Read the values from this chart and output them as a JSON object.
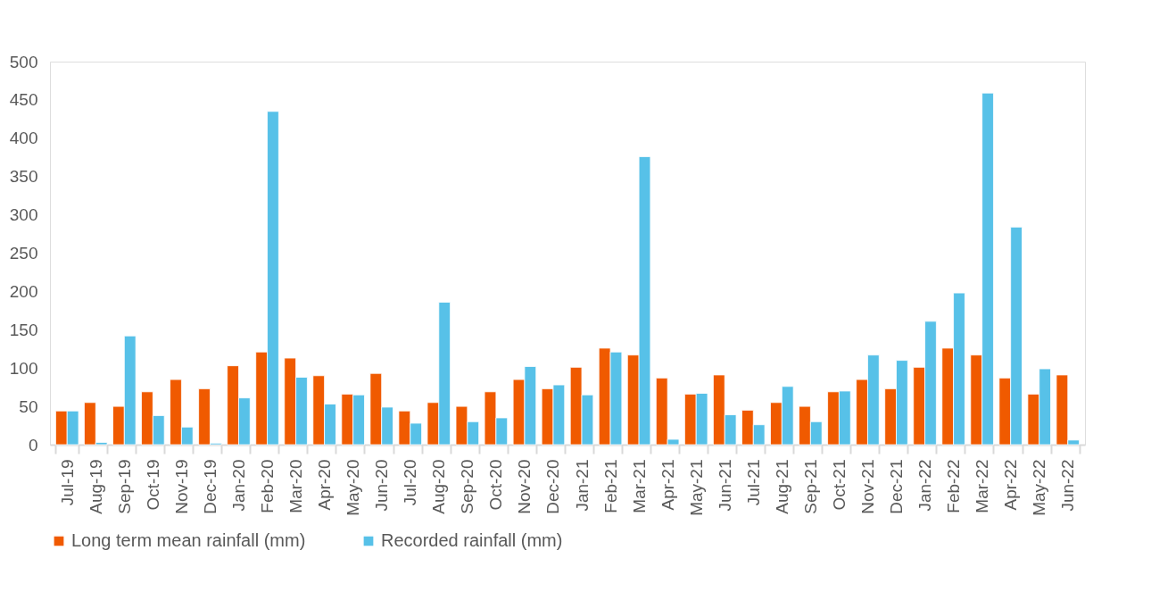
{
  "chart_data": {
    "type": "bar",
    "categories": [
      "Jul-19",
      "Aug-19",
      "Sep-19",
      "Oct-19",
      "Nov-19",
      "Dec-19",
      "Jan-20",
      "Feb-20",
      "Mar-20",
      "Apr-20",
      "May-20",
      "Jun-20",
      "Jul-20",
      "Aug-20",
      "Sep-20",
      "Oct-20",
      "Nov-20",
      "Dec-20",
      "Jan-21",
      "Feb-21",
      "Mar-21",
      "Apr-21",
      "May-21",
      "Jun-21",
      "Jul-21",
      "Aug-21",
      "Sep-21",
      "Oct-21",
      "Nov-21",
      "Dec-21",
      "Jan-22",
      "Feb-22",
      "Mar-22",
      "Apr-22",
      "May-22",
      "Jun-22"
    ],
    "series": [
      {
        "name": "Long term mean rainfall (mm)",
        "color": "#f05a00",
        "values": [
          44,
          55,
          50,
          69,
          85,
          73,
          103,
          121,
          113,
          90,
          66,
          93,
          44,
          55,
          50,
          69,
          85,
          73,
          101,
          126,
          117,
          87,
          66,
          91,
          45,
          55,
          50,
          69,
          85,
          73,
          101,
          126,
          117,
          87,
          66,
          91
        ]
      },
      {
        "name": "Recorded rainfall (mm)",
        "color": "#57c1e8",
        "values": [
          44,
          3,
          142,
          38,
          23,
          2,
          61,
          435,
          88,
          53,
          65,
          49,
          28,
          186,
          30,
          35,
          102,
          78,
          65,
          121,
          376,
          7,
          67,
          39,
          26,
          76,
          30,
          70,
          117,
          110,
          161,
          198,
          459,
          284,
          99,
          6
        ]
      }
    ],
    "ylim": [
      0,
      500
    ],
    "yticks": [
      0,
      50,
      100,
      150,
      200,
      250,
      300,
      350,
      400,
      450,
      500
    ],
    "grid": false,
    "legend": "bottom"
  }
}
